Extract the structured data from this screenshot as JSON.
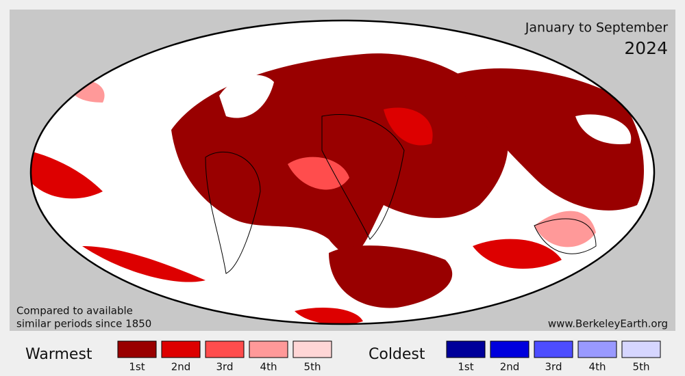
{
  "header": {
    "period": "January to September",
    "year": "2024"
  },
  "note": [
    "Compared to available",
    "similar periods since 1850"
  ],
  "source": "www.BerkeleyEarth.org",
  "legend": {
    "warm": {
      "title": "Warmest",
      "items": [
        {
          "label": "1st",
          "color": "#990000"
        },
        {
          "label": "2nd",
          "color": "#dd0000"
        },
        {
          "label": "3rd",
          "color": "#ff4d4d"
        },
        {
          "label": "4th",
          "color": "#ff9999"
        },
        {
          "label": "5th",
          "color": "#ffd6d6"
        }
      ]
    },
    "cold": {
      "title": "Coldest",
      "items": [
        {
          "label": "1st",
          "color": "#00009a"
        },
        {
          "label": "2nd",
          "color": "#0000dd"
        },
        {
          "label": "3rd",
          "color": "#4d4dff"
        },
        {
          "label": "4th",
          "color": "#9999ff"
        },
        {
          "label": "5th",
          "color": "#d6d6ff"
        }
      ]
    }
  }
}
